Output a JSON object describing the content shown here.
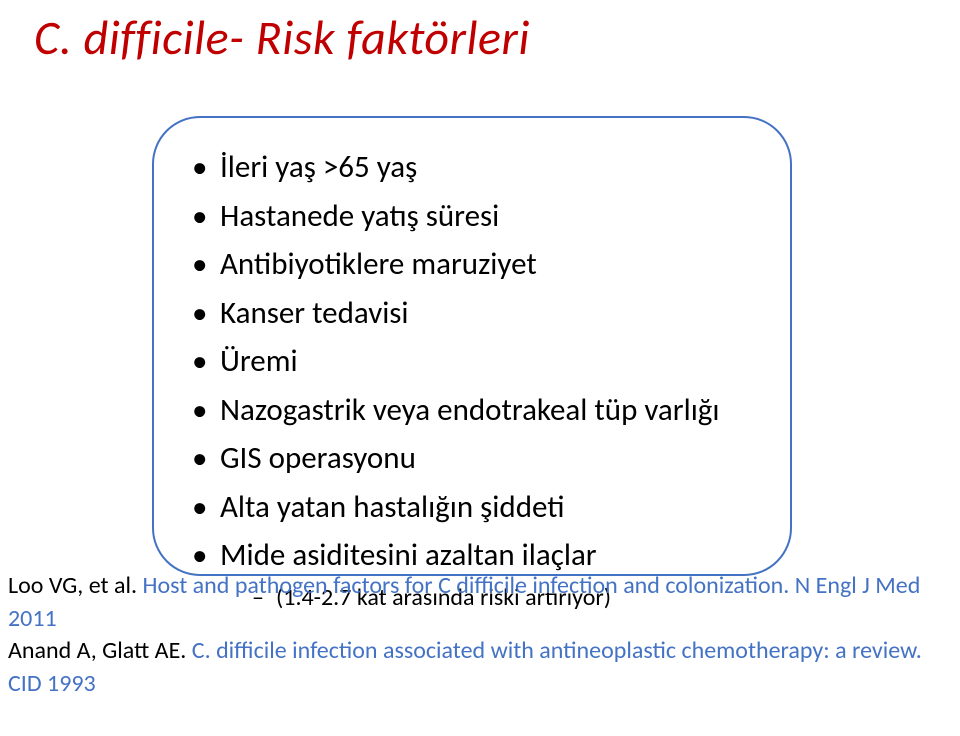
{
  "title": "C. difficile- Risk faktörleri",
  "bullets": [
    "İleri yaş >65 yaş",
    "Hastanede yatış süresi",
    "Antibiyotiklere maruziyet",
    "Kanser tedavisi",
    "Üremi",
    "Nazogastrik veya endotrakeal tüp varlığı",
    "GIS operasyonu",
    "Alta yatan hastalığın şiddeti",
    "Mide asiditesini azaltan ilaçlar"
  ],
  "sub_bullet": "(1.4-2.7 kat arasında riski artırıyor)",
  "references": [
    {
      "author": "Loo VG, et al. ",
      "body": "Host and pathogen factors for C difficile infection and colonization. N Engl J Med 2011"
    },
    {
      "author": "Anand A, Glatt AE. ",
      "body": "C. difficile infection associated with antineoplastic chemotherapy: a review. CID 1993"
    }
  ],
  "colors": {
    "title": "#c00000",
    "bubble_border": "#4472c4",
    "text": "#000000",
    "ref_body": "#4472c4",
    "background": "#ffffff"
  },
  "typography": {
    "title_fontsize": 48,
    "title_style": "italic",
    "bullet_fontsize": 31,
    "sub_fontsize": 24,
    "ref_fontsize": 24,
    "font_family": "Calibri"
  },
  "layout": {
    "slide_width": 960,
    "slide_height": 736,
    "bubble_radius": 48,
    "bubble_border_width": 2.5
  }
}
